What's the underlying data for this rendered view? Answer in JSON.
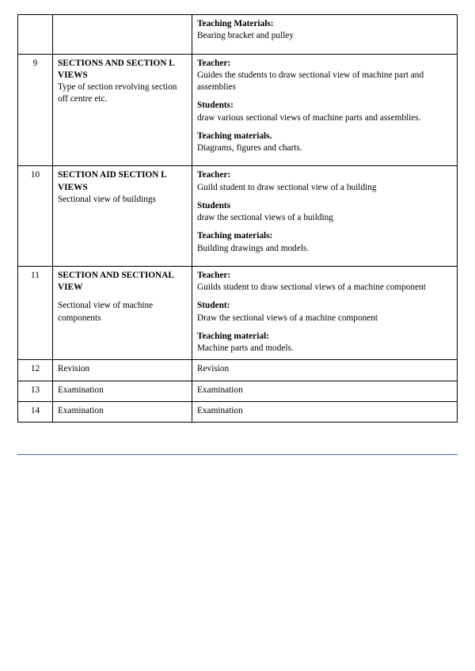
{
  "rows": [
    {
      "num": "",
      "topic_title": "",
      "topic_desc": "",
      "teacher_label": "",
      "teacher_text": "",
      "students_label": "",
      "students_text": "",
      "materials_label": "Teaching Materials:",
      "materials_text": "Bearing  bracket and pulley"
    },
    {
      "num": "9",
      "topic_title": "SECTIONS   AND SECTION L VIEWS",
      "topic_desc": "Type  of section  revolving  section  off centre etc.",
      "teacher_label": "Teacher:",
      "teacher_text": "Guides  the  students  to draw  sectional view of machine part and assemblies",
      "students_label": "Students:",
      "students_text": "draw various sectional views of machine parts and assemblies.",
      "materials_label": "Teaching materials.",
      "materials_text": " Diagrams, figures and charts."
    },
    {
      "num": "10",
      "topic_title": "SECTION  AID SECTION L VIEWS",
      "topic_desc": "Sectional  view of buildings",
      "teacher_label": "Teacher:",
      "teacher_text": "Guild student  to draw sectional  view of a building",
      "students_label": "Students",
      "students_text": "draw the sectional views of a building",
      "materials_label": "Teaching materials:",
      "materials_text": "Building drawings and models."
    },
    {
      "num": "11",
      "topic_title": "SECTION AND SECTIONAL  VIEW",
      "topic_desc": "Sectional  view  of  machine components",
      "teacher_label": "Teacher:",
      "teacher_text": "Guilds student  to  draw  sectional  views of a machine  component",
      "students_label": "Student:",
      "students_text": "Draw the sectional views of a machine component",
      "materials_label": "Teaching material:",
      "materials_text": "Machine parts and models."
    },
    {
      "num": "12",
      "topic_title": "",
      "topic_desc": "Revision",
      "col3_simple": "Revision"
    },
    {
      "num": "13",
      "topic_title": "",
      "topic_desc": "Examination",
      "col3_simple": "Examination"
    },
    {
      "num": "14",
      "topic_title": "",
      "topic_desc": "Examination",
      "col3_simple": "Examination"
    }
  ],
  "style": {
    "border_color": "#000000",
    "text_color": "#000000",
    "background": "#ffffff",
    "rule_color": "#3b6aa0",
    "font_size_pt": 8.5
  }
}
